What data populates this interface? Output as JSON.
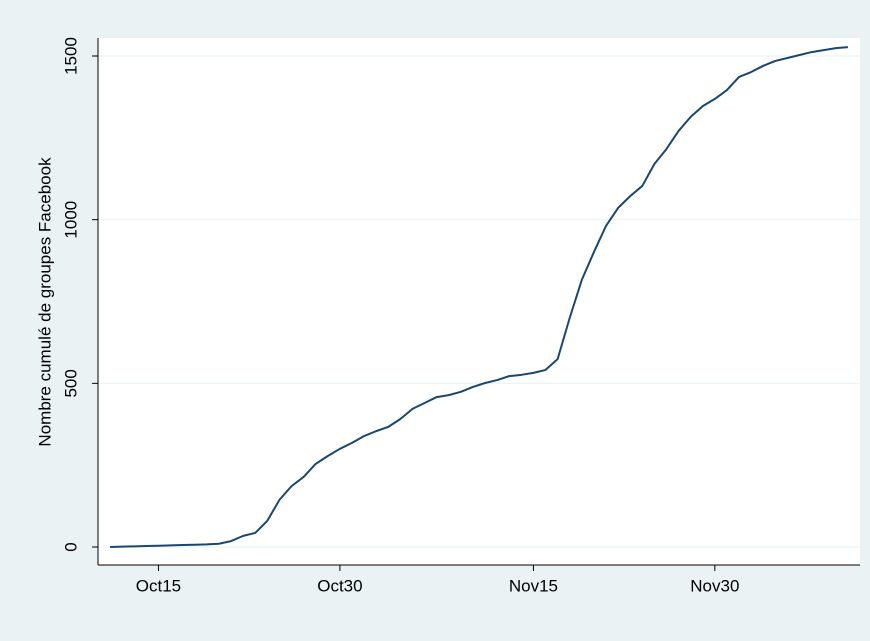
{
  "chart_data": {
    "type": "line",
    "y_label": "Nombre cumulé de groupes Facebook",
    "x": [
      "Oct11",
      "Oct12",
      "Oct13",
      "Oct14",
      "Oct15",
      "Oct16",
      "Oct17",
      "Oct18",
      "Oct19",
      "Oct20",
      "Oct21",
      "Oct22",
      "Oct23",
      "Oct24",
      "Oct25",
      "Oct26",
      "Oct27",
      "Oct28",
      "Oct29",
      "Oct30",
      "Oct31",
      "Nov1",
      "Nov2",
      "Nov3",
      "Nov4",
      "Nov5",
      "Nov6",
      "Nov7",
      "Nov8",
      "Nov9",
      "Nov10",
      "Nov11",
      "Nov12",
      "Nov13",
      "Nov14",
      "Nov15",
      "Nov16",
      "Nov17",
      "Nov18",
      "Nov19",
      "Nov20",
      "Nov21",
      "Nov22",
      "Nov23",
      "Nov24",
      "Nov25",
      "Nov26",
      "Nov27",
      "Nov28",
      "Nov29",
      "Nov30",
      "Dec1",
      "Dec2",
      "Dec3",
      "Dec4",
      "Dec5",
      "Dec6",
      "Dec7",
      "Dec8",
      "Dec9",
      "Dec10",
      "Dec11"
    ],
    "series": [
      {
        "color": "#1a476f",
        "values": [
          0,
          1,
          2,
          3,
          4,
          5,
          6,
          7,
          8,
          10,
          18,
          34,
          43,
          80,
          144,
          186,
          214,
          254,
          278,
          300,
          318,
          339,
          354,
          367,
          391,
          422,
          440,
          458,
          464,
          474,
          489,
          501,
          510,
          522,
          526,
          532,
          541,
          574,
          700,
          816,
          901,
          981,
          1036,
          1072,
          1103,
          1170,
          1216,
          1271,
          1314,
          1347,
          1369,
          1396,
          1436,
          1451,
          1470,
          1485,
          1494,
          1503,
          1512,
          1518,
          1524,
          1527
        ]
      }
    ],
    "xlim": [
      "Oct10",
      "Dec12"
    ],
    "xticks": [
      "Oct15",
      "Oct30",
      "Nov15",
      "Nov30"
    ],
    "ylim": [
      -55,
      1555
    ],
    "yticks": [
      0,
      500,
      1000,
      1500
    ],
    "grid": true
  }
}
